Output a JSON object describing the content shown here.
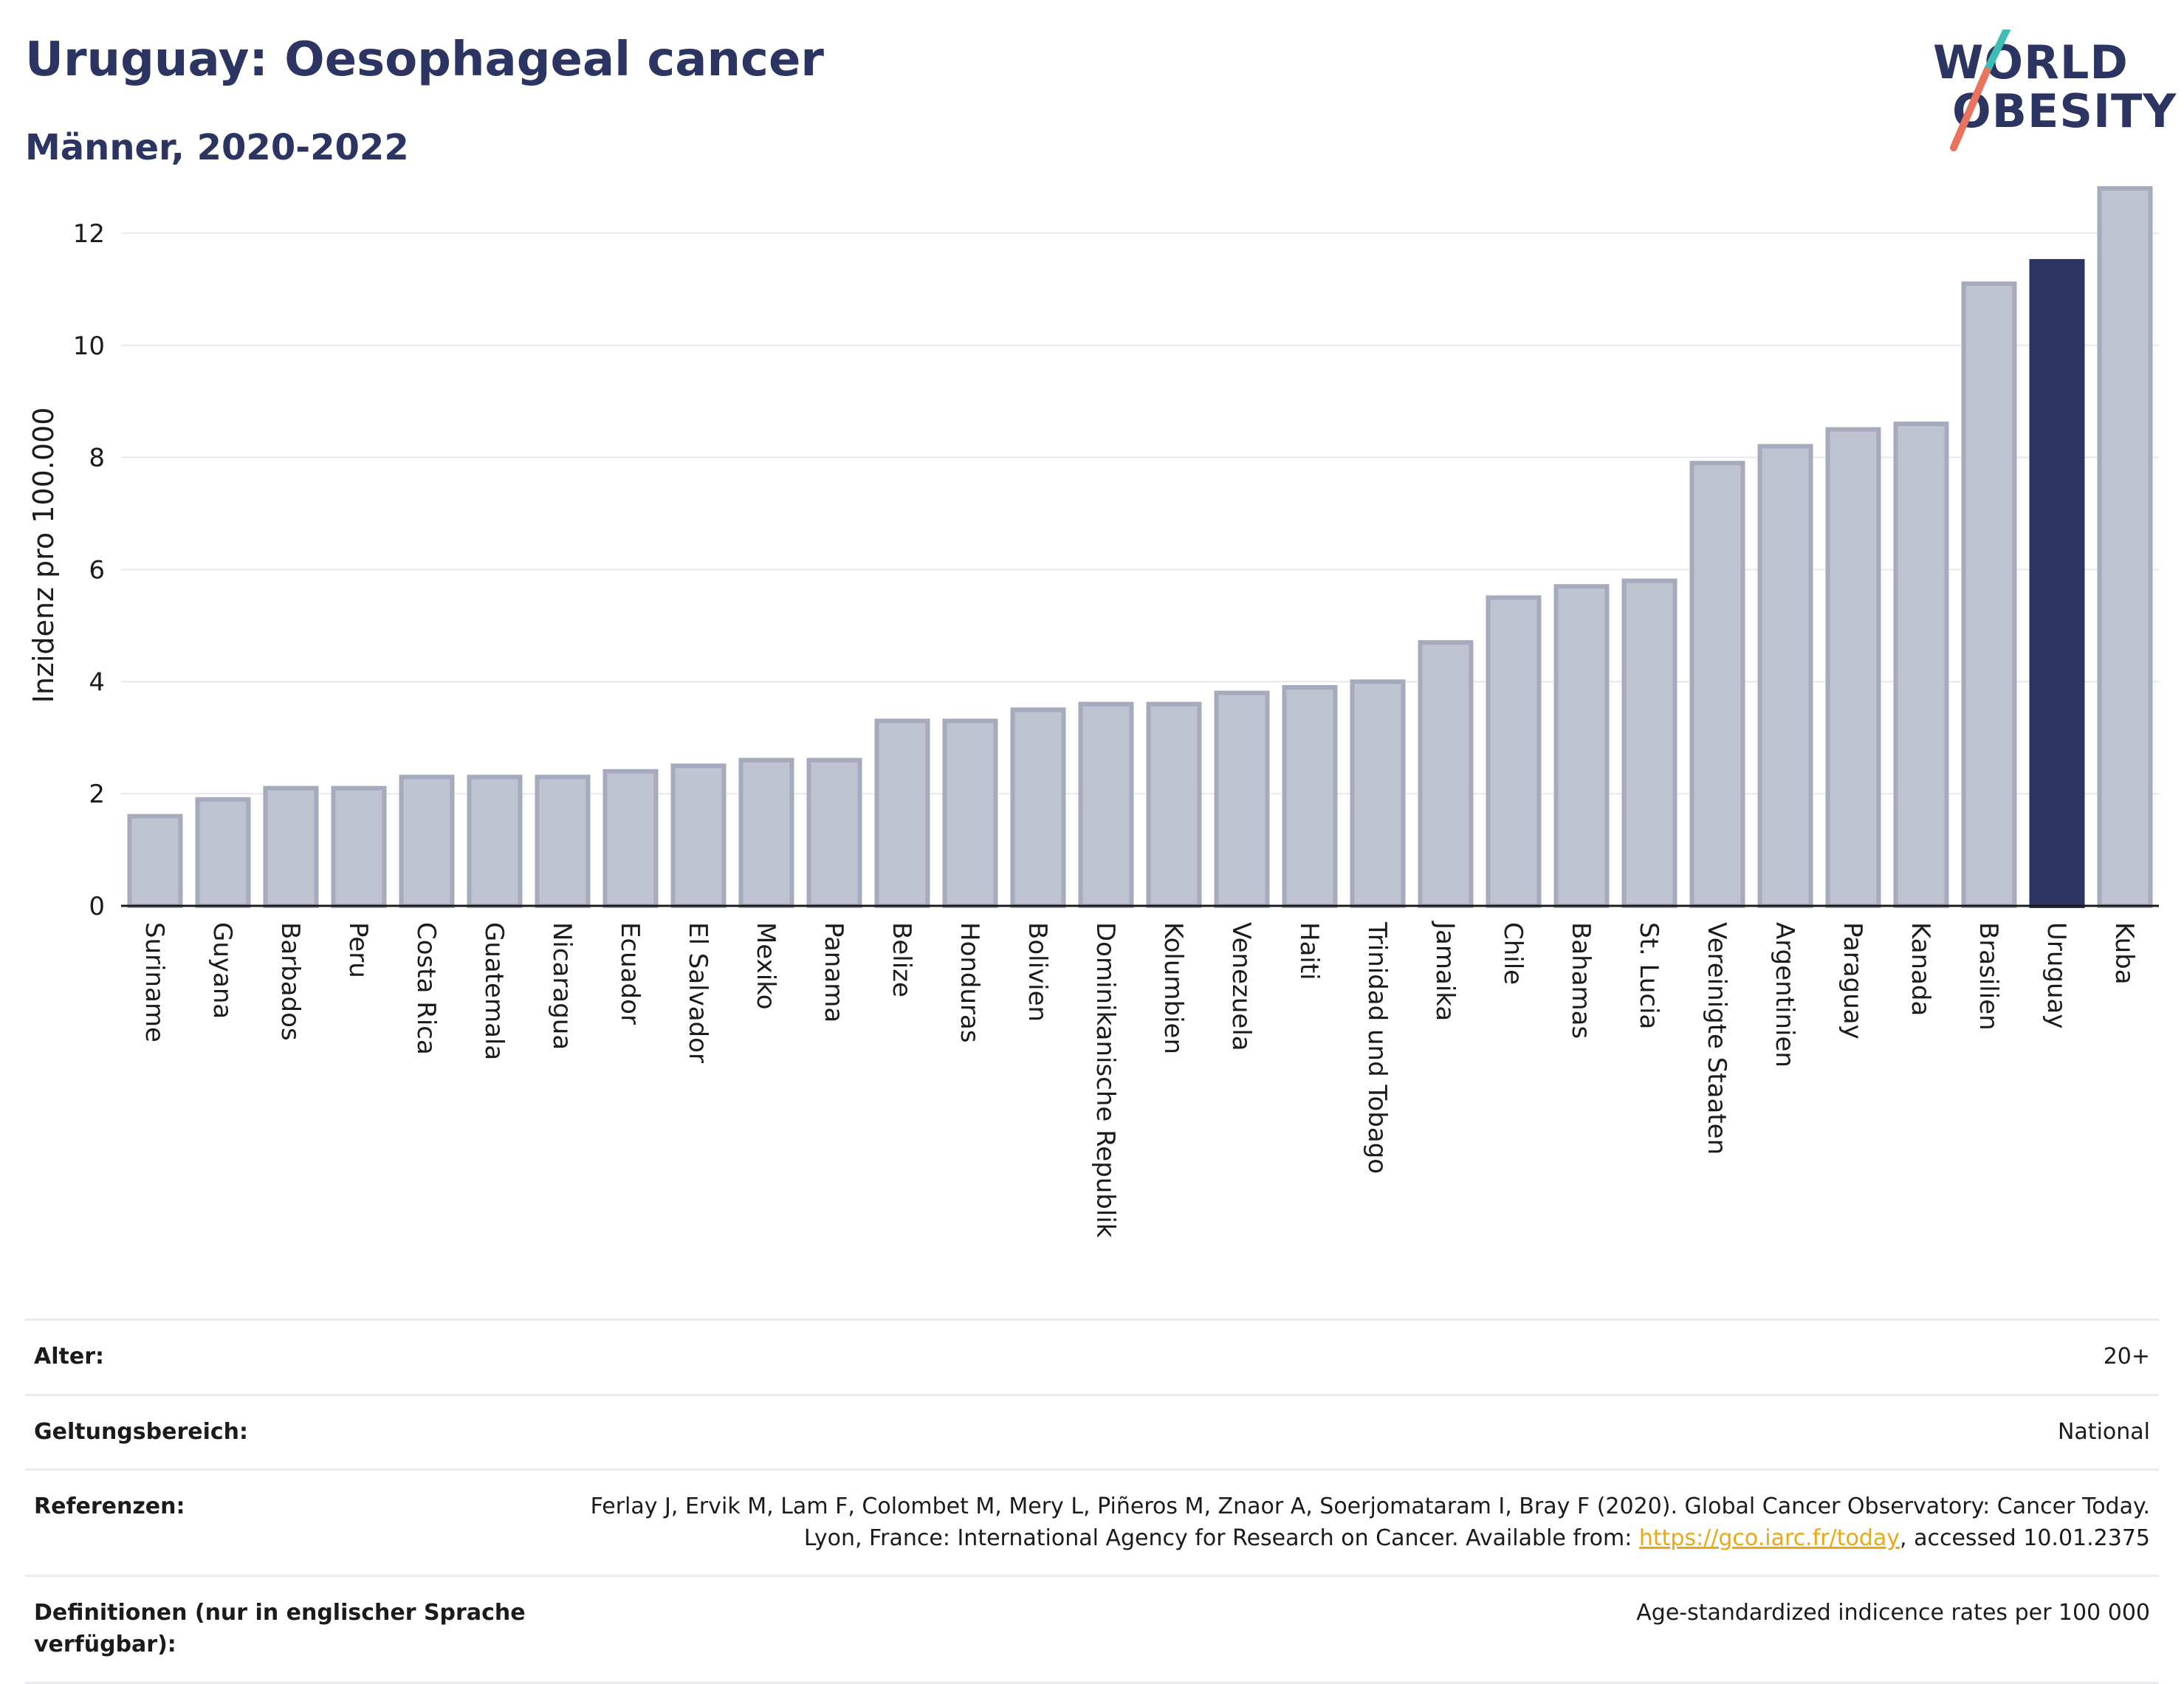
{
  "title": "Uruguay: Oesophageal cancer",
  "subtitle": "Männer, 2020-2022",
  "logo": {
    "line1": "WORLD",
    "line2": "OBESITY",
    "slash_colors": [
      "#3fbcb4",
      "#e8735f"
    ]
  },
  "colors": {
    "bar": "#c0c3d0",
    "bar_stroke": "#a5aabd",
    "highlight": "#2c3561",
    "grid": "#e6e8ef",
    "axis": "#1b1b1b"
  },
  "chart_data": {
    "type": "bar",
    "title": "Uruguay: Oesophageal cancer",
    "subtitle": "Männer, 2020-2022",
    "xlabel": "",
    "ylabel": "Inzidenz pro 100.000",
    "ylim": [
      0,
      13
    ],
    "yticks": [
      0,
      2,
      4,
      6,
      8,
      10,
      12
    ],
    "grid": true,
    "highlight": "Uruguay",
    "categories": [
      "Suriname",
      "Guyana",
      "Barbados",
      "Peru",
      "Costa Rica",
      "Guatemala",
      "Nicaragua",
      "Ecuador",
      "El Salvador",
      "Mexiko",
      "Panama",
      "Belize",
      "Honduras",
      "Bolivien",
      "Dominikanische Republik",
      "Kolumbien",
      "Venezuela",
      "Haiti",
      "Trinidad und Tobago",
      "Jamaika",
      "Chile",
      "Bahamas",
      "St. Lucia",
      "Vereinigte Staaten",
      "Argentinien",
      "Paraguay",
      "Kanada",
      "Brasilien",
      "Uruguay",
      "Kuba"
    ],
    "values": [
      1.6,
      1.9,
      2.1,
      2.1,
      2.3,
      2.3,
      2.3,
      2.4,
      2.5,
      2.6,
      2.6,
      3.3,
      3.3,
      3.5,
      3.6,
      3.6,
      3.8,
      3.9,
      4.0,
      4.7,
      5.5,
      5.7,
      5.8,
      7.9,
      8.2,
      8.5,
      8.6,
      11.1,
      11.5,
      12.8
    ]
  },
  "meta": [
    {
      "key": "Alter:",
      "value": "20+"
    },
    {
      "key": "Geltungsbereich:",
      "value": "National"
    },
    {
      "key": "Referenzen:",
      "value_pre": "Ferlay J, Ervik M, Lam F, Colombet M, Mery L, Piñeros M, Znaor A, Soerjomataram I, Bray F (2020). Global Cancer Observatory: Cancer Today. Lyon, France: International Agency for Research on Cancer. Available from: ",
      "link": "https://gco.iarc.fr/today",
      "value_post": ", accessed 10.01.2375"
    },
    {
      "key": "Definitionen (nur in englischer Sprache verfügbar):",
      "value": "Age-standardized indicence rates per 100 000"
    }
  ]
}
